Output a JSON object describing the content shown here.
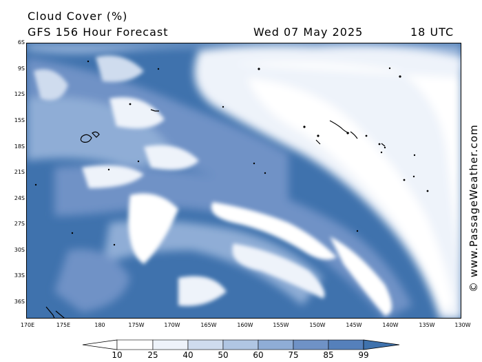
{
  "header": {
    "title": "Cloud Cover (%)",
    "subtitle": "GFS 156 Hour Forecast",
    "date": "Wed 07 May 2025",
    "time": "18 UTC"
  },
  "watermark": "© www.PassageWeather.com",
  "map": {
    "lat_labels": [
      "6S",
      "9S",
      "12S",
      "15S",
      "18S",
      "21S",
      "24S",
      "27S",
      "30S",
      "33S",
      "36S"
    ],
    "lon_labels": [
      "170E",
      "175E",
      "180",
      "175W",
      "170W",
      "165W",
      "160W",
      "155W",
      "150W",
      "145W",
      "140W",
      "135W",
      "130W"
    ],
    "ocean_color": "#3f72ad"
  },
  "legend": {
    "labels": [
      "10",
      "25",
      "40",
      "50",
      "60",
      "75",
      "85",
      "99"
    ],
    "colors": [
      "#ffffff",
      "#eef3fa",
      "#cfdcee",
      "#b0c6e3",
      "#8fadd6",
      "#6f92c6",
      "#5580bb",
      "#3f72ad"
    ]
  }
}
